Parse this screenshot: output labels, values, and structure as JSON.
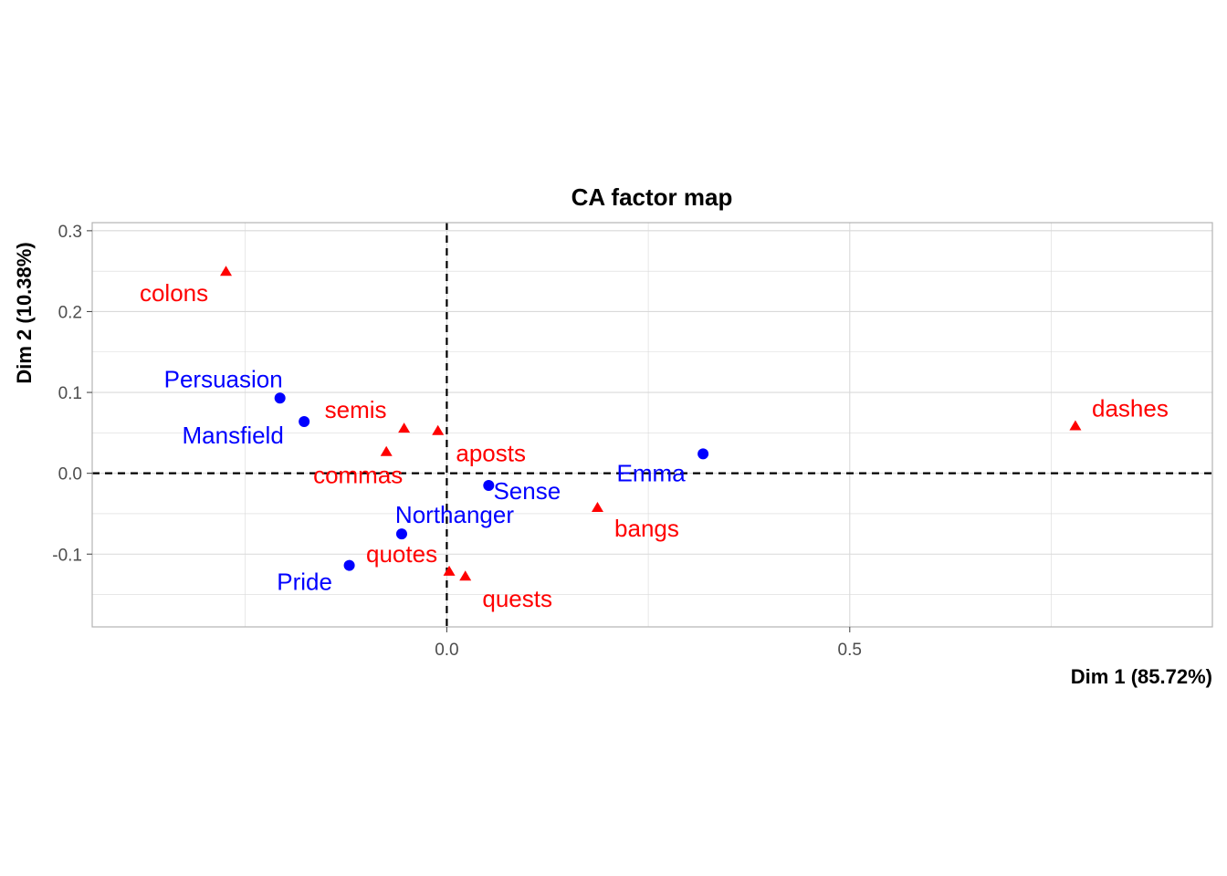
{
  "chart_data": {
    "type": "scatter",
    "title": "CA factor map",
    "xlabel": "Dim 1 (85.72%)",
    "ylabel": "Dim 2 (10.38%)",
    "xlim": [
      -0.44,
      0.95
    ],
    "ylim": [
      -0.19,
      0.31
    ],
    "x_ticks": [
      0.0,
      0.5
    ],
    "x_tick_labels": [
      "0.0",
      "0.5"
    ],
    "y_ticks": [
      -0.1,
      0.0,
      0.1,
      0.2,
      0.3
    ],
    "y_tick_labels": [
      "-0.1",
      "0.0",
      "0.1",
      "0.2",
      "0.3"
    ],
    "grid": true,
    "reference_lines": {
      "x": 0,
      "y": 0,
      "style": "dashed"
    },
    "colors": {
      "rows": "#0000ff",
      "columns": "#ff0000",
      "grid": "#d9d9d9",
      "border": "#b3b3b3"
    },
    "series": [
      {
        "name": "rows",
        "marker": "circle",
        "color": "#0000ff",
        "points": [
          {
            "label": "Persuasion",
            "x": -0.207,
            "y": 0.093
          },
          {
            "label": "Mansfield",
            "x": -0.177,
            "y": 0.064
          },
          {
            "label": "Emma",
            "x": 0.318,
            "y": 0.024
          },
          {
            "label": "Sense",
            "x": 0.052,
            "y": -0.015
          },
          {
            "label": "Northanger",
            "x": -0.056,
            "y": -0.075
          },
          {
            "label": "Pride",
            "x": -0.121,
            "y": -0.114
          }
        ]
      },
      {
        "name": "columns",
        "marker": "triangle",
        "color": "#ff0000",
        "points": [
          {
            "label": "colons",
            "x": -0.274,
            "y": 0.249
          },
          {
            "label": "semis",
            "x": -0.053,
            "y": 0.055
          },
          {
            "label": "aposts",
            "x": -0.011,
            "y": 0.052
          },
          {
            "label": "commas",
            "x": -0.075,
            "y": 0.026
          },
          {
            "label": "dashes",
            "x": 0.78,
            "y": 0.058
          },
          {
            "label": "bangs",
            "x": 0.187,
            "y": -0.043
          },
          {
            "label": "quotes",
            "x": 0.003,
            "y": -0.122
          },
          {
            "label": "quests",
            "x": 0.023,
            "y": -0.128
          }
        ]
      }
    ]
  }
}
